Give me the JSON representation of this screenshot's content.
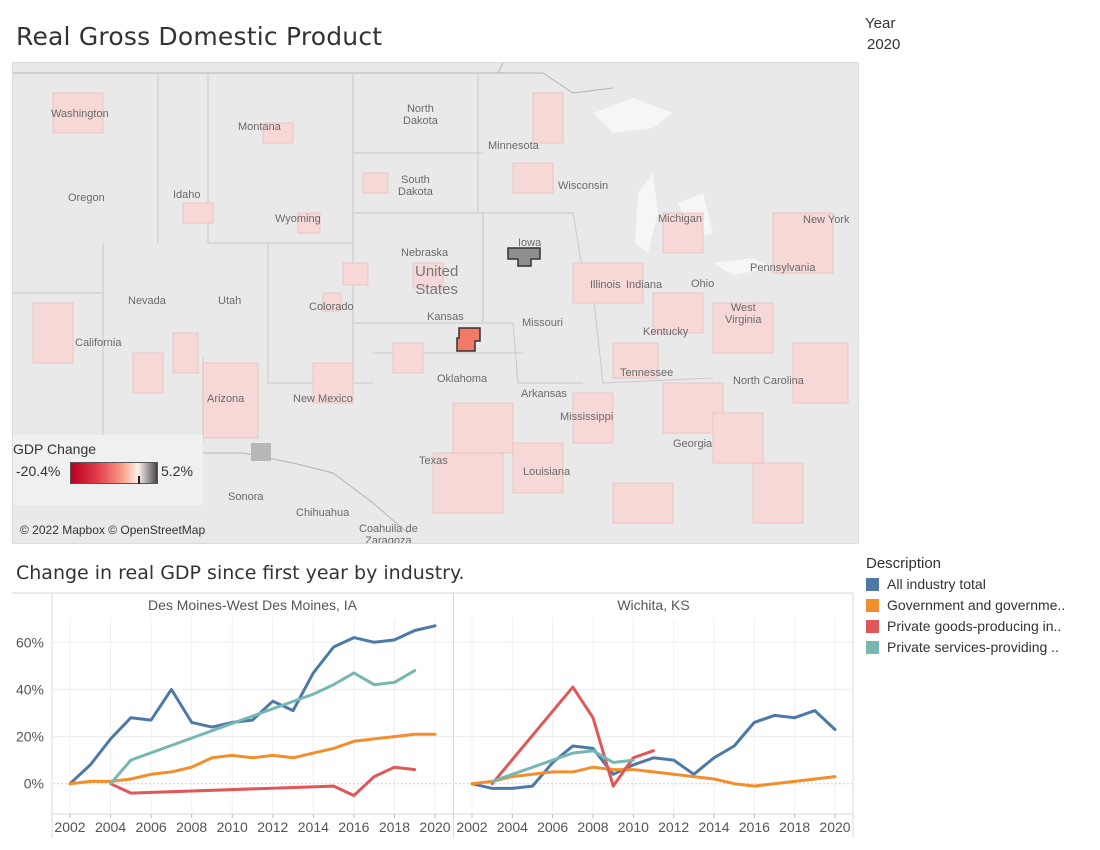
{
  "title": "Real Gross Domestic Product",
  "year_filter": {
    "label": "Year",
    "value": "2020"
  },
  "map": {
    "legend": {
      "title": "GDP Change",
      "min": "-20.4%",
      "max": "5.2%"
    },
    "attribution": "© 2022 Mapbox © OpenStreetMap",
    "labels": {
      "north_dakota": "North\nDakota",
      "montana": "Montana",
      "minnesota": "Minnesota",
      "washington": "Washington",
      "south_dakota": "South\nDakota",
      "wisconsin": "Wisconsin",
      "oregon": "Oregon",
      "idaho": "Idaho",
      "wyoming": "Wyoming",
      "new_york": "New York",
      "michigan": "Michigan",
      "iowa": "Iowa",
      "nebraska": "Nebraska",
      "pennsylvania": "Pennsylvania",
      "united_states": "United\nStates",
      "nevada": "Nevada",
      "utah": "Utah",
      "colorado": "Colorado",
      "illinois": "Illinois",
      "indiana": "Indiana",
      "ohio": "Ohio",
      "west_virginia": "West\nVirginia",
      "kansas": "Kansas",
      "missouri": "Missouri",
      "kentucky": "Kentucky",
      "california": "California",
      "tennessee": "Tennessee",
      "oklahoma": "Oklahoma",
      "north_carolina": "North Carolina",
      "arizona": "Arizona",
      "new_mexico": "New Mexico",
      "arkansas": "Arkansas",
      "mississippi": "Mississippi",
      "georgia": "Georgia",
      "texas": "Texas",
      "louisiana": "Louisiana",
      "sonora": "Sonora",
      "chihuahua": "Chihuahua",
      "coahuila": "Coahuila de\nZaragoza"
    }
  },
  "chart_title": "Change in real GDP since first year by industry.",
  "colors": {
    "all_industry": "#4e79a7",
    "government": "#f28e2b",
    "goods": "#e15759",
    "services": "#76b7b2"
  },
  "legend": {
    "title": "Description",
    "items": [
      {
        "label": "All industry total",
        "color": "#4e79a7"
      },
      {
        "label": "Government and governme..",
        "color": "#f28e2b"
      },
      {
        "label": "Private goods-producing in..",
        "color": "#e15759"
      },
      {
        "label": "Private services-providing ..",
        "color": "#76b7b2"
      }
    ]
  },
  "chart_data": {
    "type": "line",
    "y_ticks": [
      "0%",
      "20%",
      "40%",
      "60%"
    ],
    "x_ticks": [
      "2002",
      "2004",
      "2006",
      "2008",
      "2010",
      "2012",
      "2014",
      "2016",
      "2018",
      "2020"
    ],
    "xlim": [
      2001.2,
      2020.8
    ],
    "ylim": [
      -12,
      72
    ],
    "panels": [
      {
        "title": "Des Moines-West Des Moines, IA",
        "series": [
          {
            "name": "All industry total",
            "color": "#4e79a7",
            "x": [
              2002,
              2003,
              2004,
              2005,
              2006,
              2007,
              2008,
              2009,
              2010,
              2011,
              2012,
              2013,
              2014,
              2015,
              2016,
              2017,
              2018,
              2019,
              2020
            ],
            "y": [
              0,
              8,
              19,
              28,
              27,
              40,
              26,
              24,
              26,
              27,
              35,
              31,
              47,
              58,
              62,
              60,
              61,
              65,
              67
            ]
          },
          {
            "name": "Government and government enterprises",
            "color": "#f28e2b",
            "x": [
              2002,
              2003,
              2004,
              2005,
              2006,
              2007,
              2008,
              2009,
              2010,
              2011,
              2012,
              2013,
              2014,
              2015,
              2016,
              2017,
              2018,
              2019,
              2020
            ],
            "y": [
              0,
              1,
              1,
              2,
              4,
              5,
              7,
              11,
              12,
              11,
              12,
              11,
              13,
              15,
              18,
              19,
              20,
              21,
              21
            ]
          },
          {
            "name": "Private goods-producing industries",
            "color": "#e15759",
            "x": [
              2004,
              2005,
              2015,
              2016,
              2017,
              2018,
              2019
            ],
            "y": [
              0,
              -4,
              -1,
              -5,
              3,
              7,
              6
            ]
          },
          {
            "name": "Private services-providing industries",
            "color": "#76b7b2",
            "x": [
              2004,
              2005,
              2014,
              2015,
              2016,
              2017,
              2018,
              2019
            ],
            "y": [
              0,
              10,
              38,
              42,
              47,
              42,
              43,
              48
            ]
          }
        ]
      },
      {
        "title": "Wichita, KS",
        "series": [
          {
            "name": "All industry total",
            "color": "#4e79a7",
            "x": [
              2002,
              2003,
              2004,
              2005,
              2006,
              2007,
              2008,
              2009,
              2010,
              2011,
              2012,
              2013,
              2014,
              2015,
              2016,
              2017,
              2018,
              2019,
              2020
            ],
            "y": [
              0,
              -2,
              -2,
              -1,
              9,
              16,
              15,
              4,
              8,
              11,
              10,
              4,
              11,
              16,
              26,
              29,
              28,
              31,
              23
            ]
          },
          {
            "name": "Government and government enterprises",
            "color": "#f28e2b",
            "x": [
              2002,
              2003,
              2004,
              2005,
              2006,
              2007,
              2008,
              2009,
              2010,
              2011,
              2012,
              2013,
              2014,
              2015,
              2016,
              2017,
              2018,
              2019,
              2020
            ],
            "y": [
              0,
              1,
              3,
              4,
              5,
              5,
              7,
              6,
              6,
              5,
              4,
              3,
              2,
              0,
              -1,
              0,
              1,
              2,
              3
            ]
          },
          {
            "name": "Private goods-producing industries",
            "color": "#e15759",
            "x": [
              2003,
              2007,
              2008,
              2009,
              2010,
              2011
            ],
            "y": [
              0,
              41,
              28,
              -1,
              11,
              14
            ]
          },
          {
            "name": "Private services-providing industries",
            "color": "#76b7b2",
            "x": [
              2003,
              2007,
              2008,
              2009,
              2010
            ],
            "y": [
              1,
              13,
              14,
              9,
              10
            ]
          }
        ]
      }
    ]
  }
}
